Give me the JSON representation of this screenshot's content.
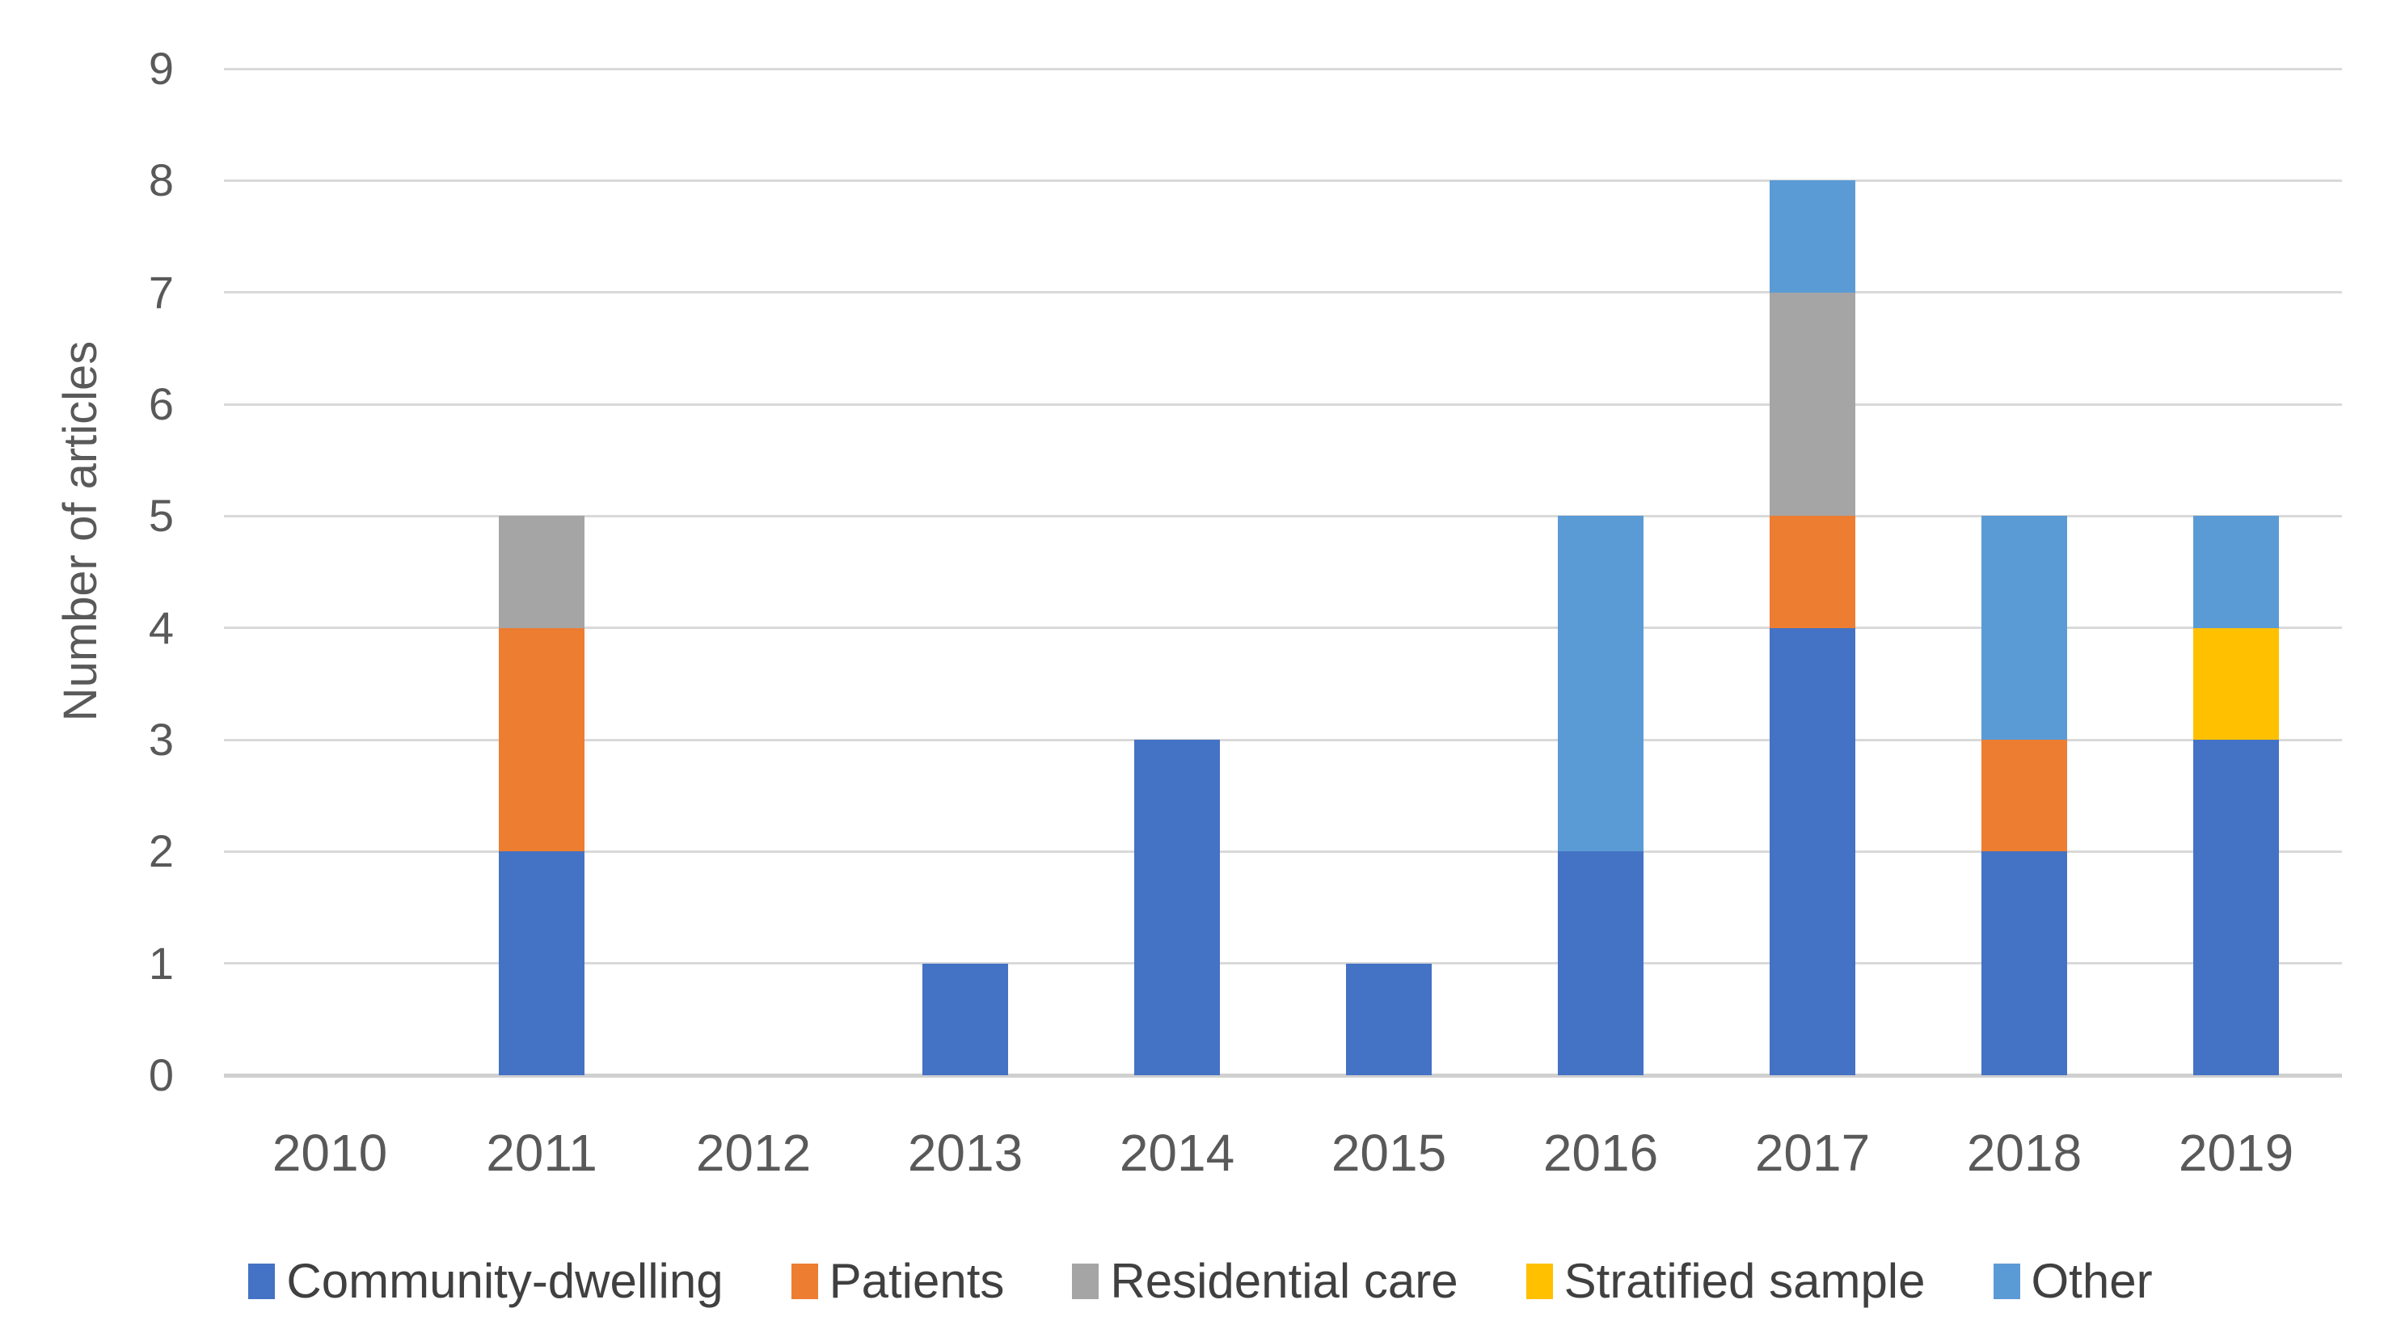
{
  "chart_data": {
    "type": "bar",
    "stacked": true,
    "title": "",
    "xlabel": "",
    "ylabel": "Number of articles",
    "categories": [
      "2010",
      "2011",
      "2012",
      "2013",
      "2014",
      "2015",
      "2016",
      "2017",
      "2018",
      "2019"
    ],
    "series": [
      {
        "name": "Community-dwelling",
        "color": "#4472C4",
        "values": [
          0,
          2,
          0,
          1,
          3,
          1,
          2,
          4,
          2,
          3
        ]
      },
      {
        "name": "Patients",
        "color": "#ED7D31",
        "values": [
          0,
          2,
          0,
          0,
          0,
          0,
          0,
          1,
          1,
          0
        ]
      },
      {
        "name": "Residential care",
        "color": "#A5A5A5",
        "values": [
          0,
          1,
          0,
          0,
          0,
          0,
          0,
          2,
          0,
          0
        ]
      },
      {
        "name": "Stratified sample",
        "color": "#FFC000",
        "values": [
          0,
          0,
          0,
          0,
          0,
          0,
          0,
          0,
          0,
          1
        ]
      },
      {
        "name": "Other",
        "color": "#5B9BD5",
        "values": [
          0,
          0,
          0,
          0,
          0,
          0,
          3,
          1,
          2,
          1
        ]
      }
    ],
    "ylim": [
      0,
      9
    ],
    "yticks": [
      "0",
      "1",
      "2",
      "3",
      "4",
      "5",
      "6",
      "7",
      "8",
      "9"
    ],
    "grid": true,
    "gridline_color": "#d9d9d9",
    "axis_text_color": "#595959",
    "legend_position": "bottom"
  }
}
